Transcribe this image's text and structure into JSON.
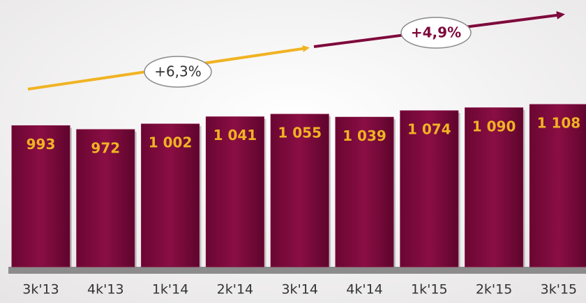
{
  "chart_data": {
    "type": "bar",
    "categories": [
      "3k'13",
      "4k'13",
      "1k'14",
      "2k'14",
      "3k'14",
      "4k'14",
      "1k'15",
      "2k'15",
      "3k'15"
    ],
    "values": [
      993,
      972,
      1002,
      1041,
      1055,
      1039,
      1074,
      1090,
      1108
    ],
    "value_labels": [
      "993",
      "972",
      "1 002",
      "1 041",
      "1 055",
      "1 039",
      "1 074",
      "1 090",
      "1 108"
    ],
    "color": "#7f0a3c",
    "annotations": [
      "+6,3%",
      "+4,9%"
    ]
  }
}
